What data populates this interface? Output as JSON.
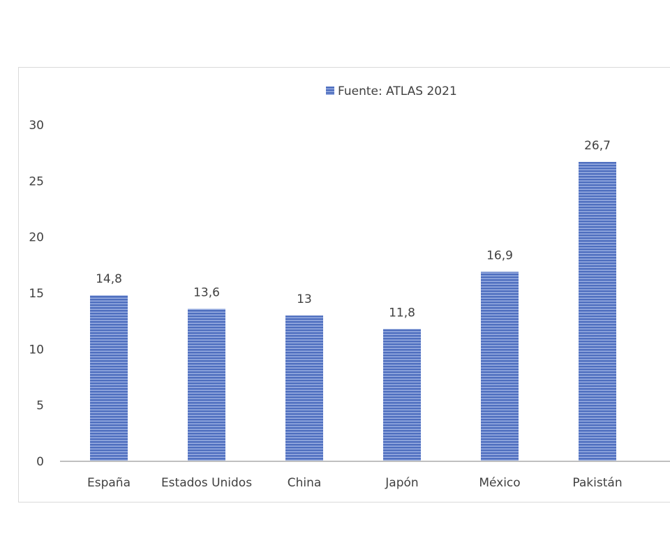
{
  "chart_data": {
    "type": "bar",
    "categories": [
      "España",
      "Estados Unidos",
      "China",
      "Japón",
      "México",
      "Pakistán"
    ],
    "series": [
      {
        "name": "Fuente: ATLAS 2021",
        "values": [
          14.8,
          13.6,
          13,
          11.8,
          16.9,
          26.7
        ]
      }
    ],
    "data_labels": [
      "14,8",
      "13,6",
      "13",
      "11,8",
      "16,9",
      "26,7"
    ],
    "y_ticks": [
      0,
      5,
      10,
      15,
      20,
      25,
      30
    ],
    "ylim": [
      0,
      30
    ],
    "legend_position": "top",
    "grid": false,
    "bar_color": "#4f6fbf"
  }
}
